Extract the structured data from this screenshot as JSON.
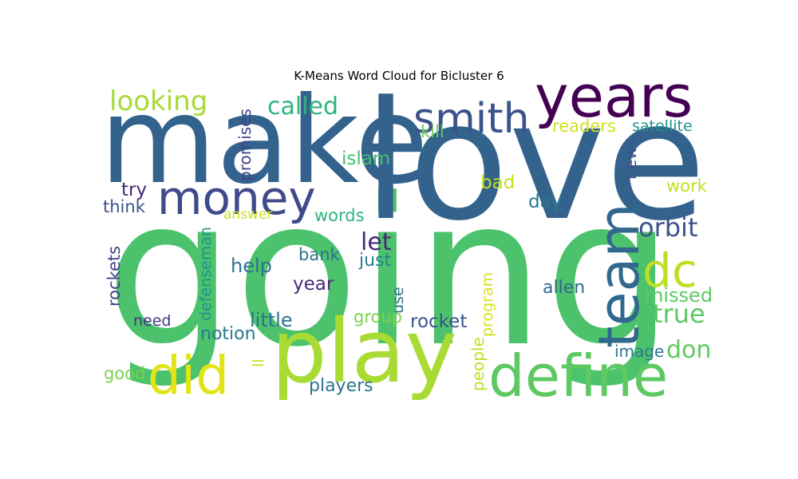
{
  "chart_data": {
    "type": "wordcloud",
    "title": "K-Means Word Cloud for Bicluster 6",
    "colormap": "viridis",
    "background": "#ffffff",
    "words": [
      {
        "text": "going",
        "weight": 1.0,
        "color": "#4cc26c",
        "orientation": "horizontal"
      },
      {
        "text": "love",
        "weight": 0.88,
        "color": "#33638d",
        "orientation": "horizontal"
      },
      {
        "text": "make",
        "weight": 0.8,
        "color": "#33638d",
        "orientation": "horizontal"
      },
      {
        "text": "play",
        "weight": 0.62,
        "color": "#a8db34",
        "orientation": "horizontal"
      },
      {
        "text": "define",
        "weight": 0.42,
        "color": "#5ec962",
        "orientation": "horizontal"
      },
      {
        "text": "team",
        "weight": 0.4,
        "color": "#31688e",
        "orientation": "vertical"
      },
      {
        "text": "years",
        "weight": 0.39,
        "color": "#440154",
        "orientation": "horizontal"
      },
      {
        "text": "money",
        "weight": 0.34,
        "color": "#3e4a89",
        "orientation": "horizontal"
      },
      {
        "text": "did",
        "weight": 0.34,
        "color": "#e3e418",
        "orientation": "horizontal"
      },
      {
        "text": "smith",
        "weight": 0.32,
        "color": "#3b528b",
        "orientation": "horizontal"
      },
      {
        "text": "dc",
        "weight": 0.3,
        "color": "#bddf26",
        "orientation": "horizontal"
      },
      {
        "text": "looking",
        "weight": 0.16,
        "color": "#a5db36",
        "orientation": "horizontal"
      },
      {
        "text": "called",
        "weight": 0.15,
        "color": "#2fb47c",
        "orientation": "horizontal"
      },
      {
        "text": "orbit",
        "weight": 0.16,
        "color": "#3b528b",
        "orientation": "horizontal"
      },
      {
        "text": "true",
        "weight": 0.16,
        "color": "#5ec962",
        "orientation": "horizontal"
      },
      {
        "text": "don",
        "weight": 0.14,
        "color": "#5ec962",
        "orientation": "horizontal"
      },
      {
        "text": "let",
        "weight": 0.14,
        "color": "#482677",
        "orientation": "horizontal"
      },
      {
        "text": "promises",
        "weight": 0.1,
        "color": "#404387",
        "orientation": "vertical"
      },
      {
        "text": "kill",
        "weight": 0.1,
        "color": "#6ccd5a",
        "orientation": "horizontal"
      },
      {
        "text": "readers",
        "weight": 0.1,
        "color": "#d0e11c",
        "orientation": "horizontal"
      },
      {
        "text": "satellite",
        "weight": 0.09,
        "color": "#21918c",
        "orientation": "horizontal"
      },
      {
        "text": "islam",
        "weight": 0.1,
        "color": "#44bf70",
        "orientation": "horizontal"
      },
      {
        "text": "news",
        "weight": 0.09,
        "color": "#3b528b",
        "orientation": "vertical"
      },
      {
        "text": "bad",
        "weight": 0.1,
        "color": "#c2df23",
        "orientation": "horizontal"
      },
      {
        "text": "work",
        "weight": 0.1,
        "color": "#c2df23",
        "orientation": "horizontal"
      },
      {
        "text": "try",
        "weight": 0.1,
        "color": "#482878",
        "orientation": "horizontal"
      },
      {
        "text": "day",
        "weight": 0.1,
        "color": "#2a788e",
        "orientation": "horizontal"
      },
      {
        "text": "think",
        "weight": 0.1,
        "color": "#3b528b",
        "orientation": "horizontal"
      },
      {
        "text": "answer",
        "weight": 0.08,
        "color": "#c8e020",
        "orientation": "horizontal"
      },
      {
        "text": "words",
        "weight": 0.1,
        "color": "#2fb47c",
        "orientation": "horizontal"
      },
      {
        "text": "defenseman",
        "weight": 0.09,
        "color": "#21918c",
        "orientation": "vertical"
      },
      {
        "text": "rockets",
        "weight": 0.1,
        "color": "#414487",
        "orientation": "vertical"
      },
      {
        "text": "help",
        "weight": 0.1,
        "color": "#2c728e",
        "orientation": "horizontal"
      },
      {
        "text": "bank",
        "weight": 0.1,
        "color": "#2c728e",
        "orientation": "horizontal"
      },
      {
        "text": "just",
        "weight": 0.1,
        "color": "#27808e",
        "orientation": "horizontal"
      },
      {
        "text": "year",
        "weight": 0.1,
        "color": "#482878",
        "orientation": "horizontal"
      },
      {
        "text": "use",
        "weight": 0.1,
        "color": "#2c728e",
        "orientation": "vertical"
      },
      {
        "text": "program",
        "weight": 0.09,
        "color": "#d8e219",
        "orientation": "vertical"
      },
      {
        "text": "allen",
        "weight": 0.1,
        "color": "#31688e",
        "orientation": "horizontal"
      },
      {
        "text": "missed",
        "weight": 0.1,
        "color": "#5ec962",
        "orientation": "horizontal"
      },
      {
        "text": "need",
        "weight": 0.08,
        "color": "#46337f",
        "orientation": "horizontal"
      },
      {
        "text": "little",
        "weight": 0.1,
        "color": "#2c728e",
        "orientation": "horizontal"
      },
      {
        "text": "group",
        "weight": 0.1,
        "color": "#7ad151",
        "orientation": "horizontal"
      },
      {
        "text": "rocket",
        "weight": 0.1,
        "color": "#3b528b",
        "orientation": "horizontal"
      },
      {
        "text": "notion",
        "weight": 0.1,
        "color": "#2a788e",
        "orientation": "horizontal"
      },
      {
        "text": "image",
        "weight": 0.09,
        "color": "#2a788e",
        "orientation": "horizontal"
      },
      {
        "text": "ll",
        "weight": 0.08,
        "color": "#c2df23",
        "orientation": "vertical"
      },
      {
        "text": "good",
        "weight": 0.09,
        "color": "#7ad151",
        "orientation": "horizontal"
      },
      {
        "text": "people",
        "weight": 0.09,
        "color": "#bddf26",
        "orientation": "vertical"
      },
      {
        "text": "players",
        "weight": 0.1,
        "color": "#2c728e",
        "orientation": "horizontal"
      }
    ]
  }
}
